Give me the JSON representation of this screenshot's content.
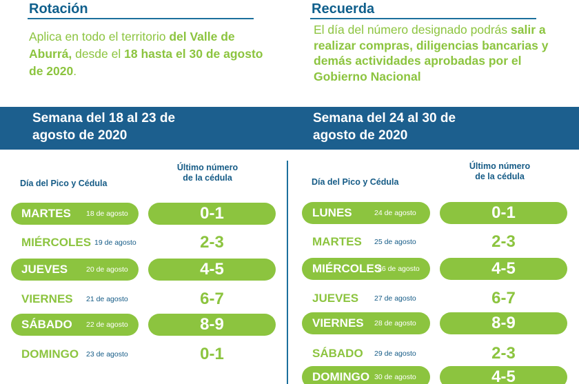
{
  "left": {
    "heading": "Rotación",
    "intro": [
      {
        "t": "Aplica en todo el territorio ",
        "b": false
      },
      {
        "t": "del Valle de Aburrá,",
        "b": true
      },
      {
        "t": " desde el ",
        "b": false
      },
      {
        "t": "18 hasta el 30 de agosto de 2020",
        "b": true
      },
      {
        "t": ".",
        "b": false
      }
    ],
    "week_title": "Semana del 18 al 23 de agosto de 2020",
    "col_day": "Día del Pico y Cédula",
    "col_num": "Último número de la cédula",
    "rows": [
      {
        "day": "MARTES",
        "date": "18 de agosto",
        "num": "0-1",
        "hl": true
      },
      {
        "day": "MIÉRCOLES",
        "date": "19 de agosto",
        "num": "2-3",
        "hl": false
      },
      {
        "day": "JUEVES",
        "date": "20 de agosto",
        "num": "4-5",
        "hl": true
      },
      {
        "day": "VIERNES",
        "date": "21 de agosto",
        "num": "6-7",
        "hl": false
      },
      {
        "day": "SÁBADO",
        "date": "22 de agosto",
        "num": "8-9",
        "hl": true
      },
      {
        "day": "DOMINGO",
        "date": "23 de agosto",
        "num": "0-1",
        "hl": false
      }
    ]
  },
  "right": {
    "heading": "Recuerda",
    "intro": [
      {
        "t": "El día del número designado podrás ",
        "b": false
      },
      {
        "t": "salir a realizar compras, diligencias bancarias y demás actividades aprobadas por el Gobierno Nacional",
        "b": true
      }
    ],
    "week_title": "Semana del 24 al 30 de agosto de 2020",
    "col_day": "Día del Pico y Cédula",
    "col_num": "Último número de la cédula",
    "rows": [
      {
        "day": "LUNES",
        "date": "24 de agosto",
        "num": "0-1",
        "hl": true
      },
      {
        "day": "MARTES",
        "date": "25 de agosto",
        "num": "2-3",
        "hl": false
      },
      {
        "day": "MIÉRCOLES",
        "date": "26 de agosto",
        "num": "4-5",
        "hl": true
      },
      {
        "day": "JUEVES",
        "date": "27 de agosto",
        "num": "6-7",
        "hl": false
      },
      {
        "day": "VIERNES",
        "date": "28 de agosto",
        "num": "8-9",
        "hl": true
      },
      {
        "day": "SÁBADO",
        "date": "29 de agosto",
        "num": "2-3",
        "hl": false
      },
      {
        "day": "DOMINGO",
        "date": "30 de agosto",
        "num": "4-5",
        "hl": true
      }
    ]
  },
  "colors": {
    "green": "#8cc43f",
    "blue": "#1c5f8e",
    "navy_text": "#155b86"
  }
}
